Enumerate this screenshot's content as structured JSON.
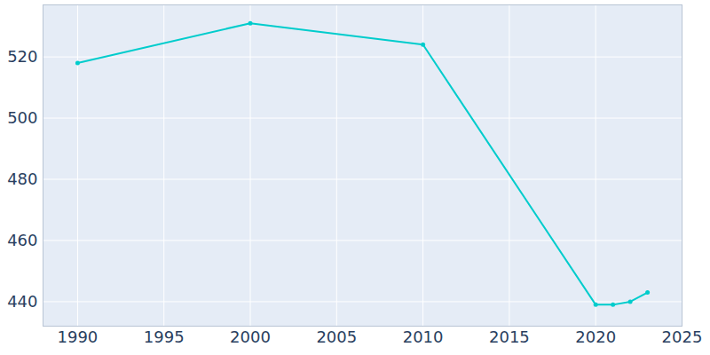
{
  "chart_data": {
    "type": "line",
    "x": [
      1990,
      2000,
      2010,
      2020,
      2021,
      2022,
      2023
    ],
    "values": [
      518,
      531,
      524,
      439,
      439,
      440,
      443
    ],
    "color": "#00cccc",
    "marker": "circle",
    "xlim": [
      1988,
      2025
    ],
    "xticks": [
      1990,
      1995,
      2000,
      2005,
      2010,
      2015,
      2020,
      2025
    ],
    "ylim": [
      432,
      537
    ],
    "yticks": [
      440,
      460,
      480,
      500,
      520
    ],
    "grid": true
  }
}
